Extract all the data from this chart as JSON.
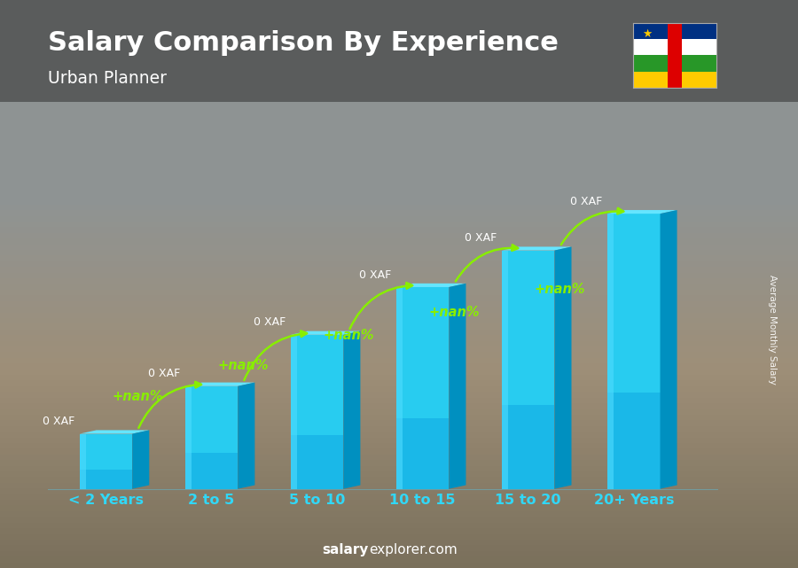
{
  "title": "Salary Comparison By Experience",
  "subtitle": "Urban Planner",
  "categories": [
    "< 2 Years",
    "2 to 5",
    "5 to 10",
    "10 to 15",
    "15 to 20",
    "20+ Years"
  ],
  "bar_heights": [
    1.5,
    2.8,
    4.2,
    5.5,
    6.5,
    7.5
  ],
  "value_labels": [
    "0 XAF",
    "0 XAF",
    "0 XAF",
    "0 XAF",
    "0 XAF",
    "0 XAF"
  ],
  "pct_labels": [
    "+nan%",
    "+nan%",
    "+nan%",
    "+nan%",
    "+nan%"
  ],
  "bar_front_color": "#28c8f0",
  "bar_top_color": "#70e8ff",
  "bar_right_color": "#0090c8",
  "bar_left_highlight": "#45d8ff",
  "bg_color": "#8a9090",
  "title_color": "#ffffff",
  "subtitle_color": "#ffffff",
  "cat_color": "#30d8f8",
  "value_color": "#ffffff",
  "pct_color": "#88ee00",
  "arrow_color": "#88ee00",
  "ylabel_text": "Average Monthly Salary",
  "footer_bold": "salary",
  "footer_normal": "explorer.com",
  "footer_color": "#ffffff",
  "flag_blue": "#003082",
  "flag_white": "#ffffff",
  "flag_green": "#289728",
  "flag_yellow": "#ffcb00",
  "flag_red": "#dd0000",
  "flag_star": "#ffcb00"
}
